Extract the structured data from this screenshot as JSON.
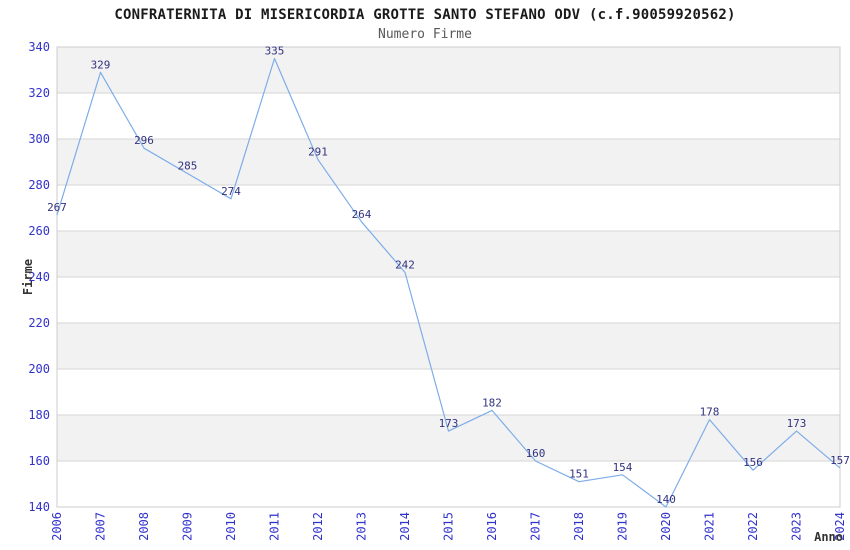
{
  "chart_data": {
    "type": "line",
    "title": "CONFRATERNITA DI MISERICORDIA GROTTE SANTO STEFANO ODV (c.f.90059920562)",
    "subtitle": "Numero Firme",
    "xlabel": "Anno",
    "ylabel": "Firme",
    "categories": [
      "2006",
      "2007",
      "2008",
      "2009",
      "2010",
      "2011",
      "2012",
      "2013",
      "2014",
      "2015",
      "2016",
      "2017",
      "2018",
      "2019",
      "2020",
      "2021",
      "2022",
      "2023",
      "2024"
    ],
    "values": [
      267,
      329,
      296,
      285,
      274,
      335,
      291,
      264,
      242,
      173,
      182,
      160,
      151,
      154,
      140,
      178,
      156,
      173,
      157
    ],
    "ylim": [
      140,
      340
    ],
    "ytick_step": 20,
    "ytick_labels": [
      "140",
      "160",
      "180",
      "200",
      "220",
      "240",
      "260",
      "280",
      "300",
      "320",
      "340"
    ],
    "grid": true,
    "legend": "none",
    "point_markers": false,
    "data_labels_shown": true,
    "colors": {
      "line": "#7dade9",
      "tick_label": "#3232cd",
      "data_label": "#333380",
      "band_fill": "#f2f2f2",
      "gridline": "#d6d6d6",
      "plot_border": "#cccccc",
      "title": "#1a1a1a",
      "subtitle": "#595959",
      "axis_title": "#333333",
      "background": "#ffffff"
    }
  }
}
